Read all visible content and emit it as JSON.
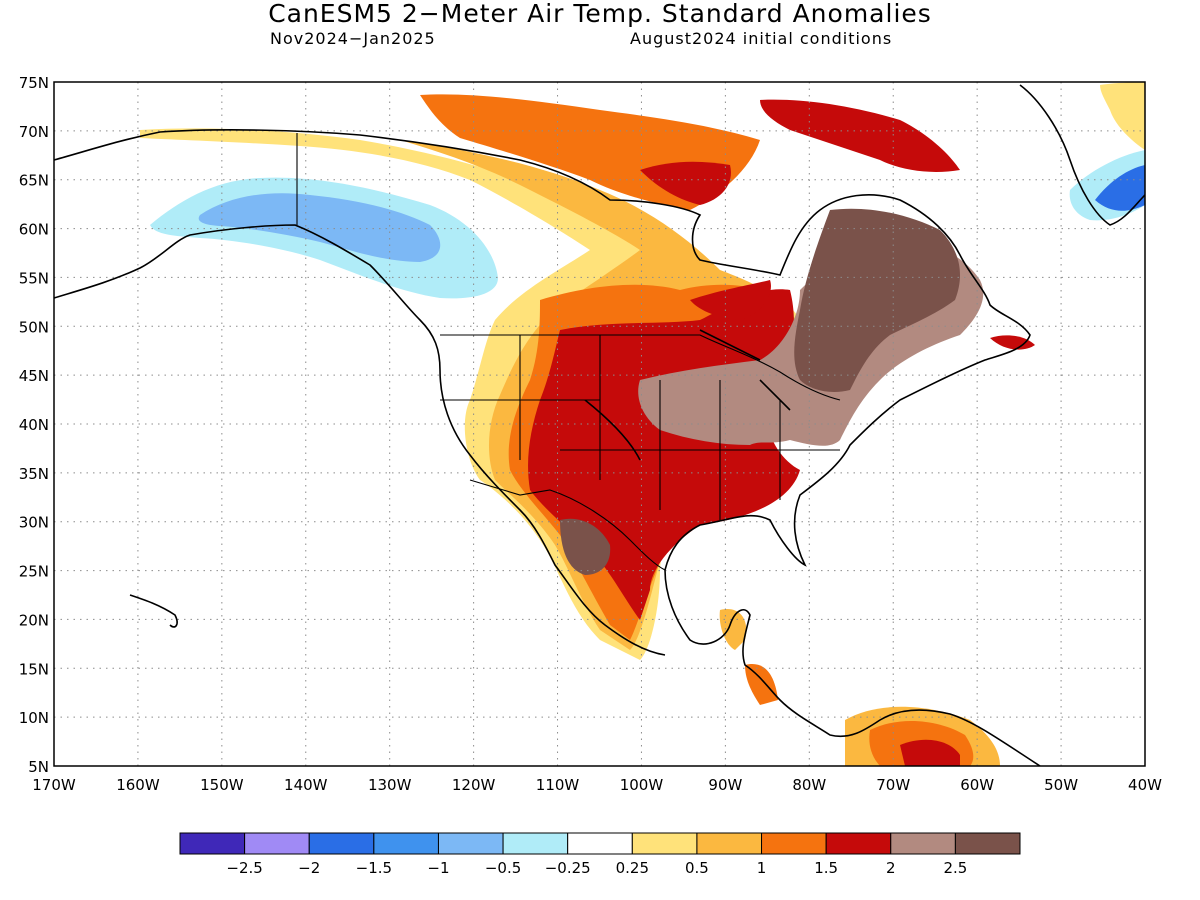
{
  "title": "CanESM5 2−Meter Air Temp. Standard Anomalies",
  "subtitle_left": "Nov2024−Jan2025",
  "subtitle_right": "August2024 initial conditions",
  "map": {
    "lon_range": [
      -170,
      -40
    ],
    "lat_range": [
      5,
      75
    ],
    "lon_labels": [
      "170W",
      "160W",
      "150W",
      "140W",
      "130W",
      "120W",
      "110W",
      "100W",
      "90W",
      "80W",
      "70W",
      "60W",
      "50W",
      "40W"
    ],
    "lat_labels": [
      "75N",
      "70N",
      "65N",
      "60N",
      "55N",
      "50N",
      "45N",
      "40N",
      "35N",
      "30N",
      "25N",
      "20N",
      "15N",
      "10N",
      "5N"
    ],
    "grid": "dotted"
  },
  "legend": {
    "tick_labels": [
      "−2.5",
      "−2",
      "−1.5",
      "−1",
      "−0.5",
      "−0.25",
      "0.25",
      "0.5",
      "1",
      "1.5",
      "2",
      "2.5"
    ],
    "colors": [
      "#3f28b8",
      "#a08af5",
      "#2a6ee6",
      "#3f92ee",
      "#7cb8f5",
      "#b0ecf8",
      "#ffffff",
      "#ffe27a",
      "#fbb840",
      "#f5730f",
      "#c50a0a",
      "#b28a80",
      "#7a524a"
    ]
  }
}
